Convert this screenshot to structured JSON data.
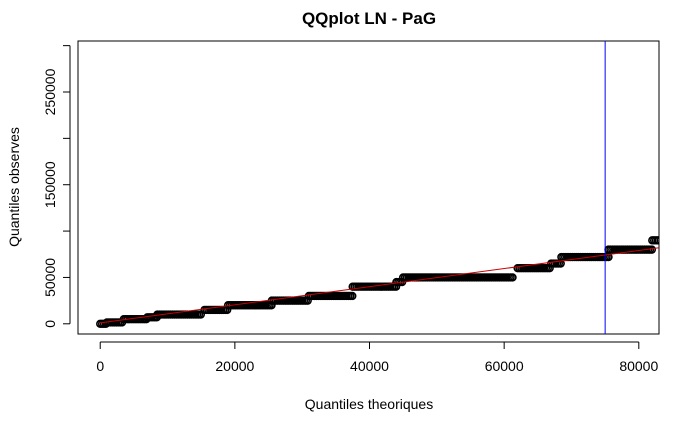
{
  "chart_data": {
    "type": "scatter",
    "title": "QQplot LN - PaG",
    "xlabel": "Quantiles theoriques",
    "ylabel": "Quantiles observes",
    "xlim": [
      -3300,
      83000
    ],
    "ylim": [
      -11000,
      305000
    ],
    "xticks": [
      0,
      20000,
      40000,
      60000,
      80000
    ],
    "yticks": [
      0,
      50000,
      150000,
      250000
    ],
    "point_color": "#000000",
    "reference_line": {
      "color": "#cc0000",
      "from": [
        0,
        1000
      ],
      "to": [
        83000,
        82000
      ]
    },
    "vertical_line": {
      "x": 75000,
      "color": "#0000ff"
    },
    "steps": [
      {
        "x_start": 0,
        "x_end": 1000,
        "y": 0
      },
      {
        "x_start": 1000,
        "x_end": 3500,
        "y": 1500
      },
      {
        "x_start": 3500,
        "x_end": 7000,
        "y": 5000
      },
      {
        "x_start": 7000,
        "x_end": 8500,
        "y": 7000
      },
      {
        "x_start": 8500,
        "x_end": 15000,
        "y": 10000
      },
      {
        "x_start": 15500,
        "x_end": 19000,
        "y": 15000
      },
      {
        "x_start": 19000,
        "x_end": 25500,
        "y": 20000
      },
      {
        "x_start": 25500,
        "x_end": 31000,
        "y": 25000
      },
      {
        "x_start": 31000,
        "x_end": 37500,
        "y": 30000
      },
      {
        "x_start": 37500,
        "x_end": 44000,
        "y": 40000
      },
      {
        "x_start": 44000,
        "x_end": 45000,
        "y": 45000
      },
      {
        "x_start": 45000,
        "x_end": 61500,
        "y": 50000
      },
      {
        "x_start": 62000,
        "x_end": 67000,
        "y": 60000
      },
      {
        "x_start": 67000,
        "x_end": 68500,
        "y": 65000
      },
      {
        "x_start": 68500,
        "x_end": 75500,
        "y": 72000
      },
      {
        "x_start": 75500,
        "x_end": 82000,
        "y": 80000
      },
      {
        "x_start": 82000,
        "x_end": 83000,
        "y": 90000
      }
    ]
  }
}
